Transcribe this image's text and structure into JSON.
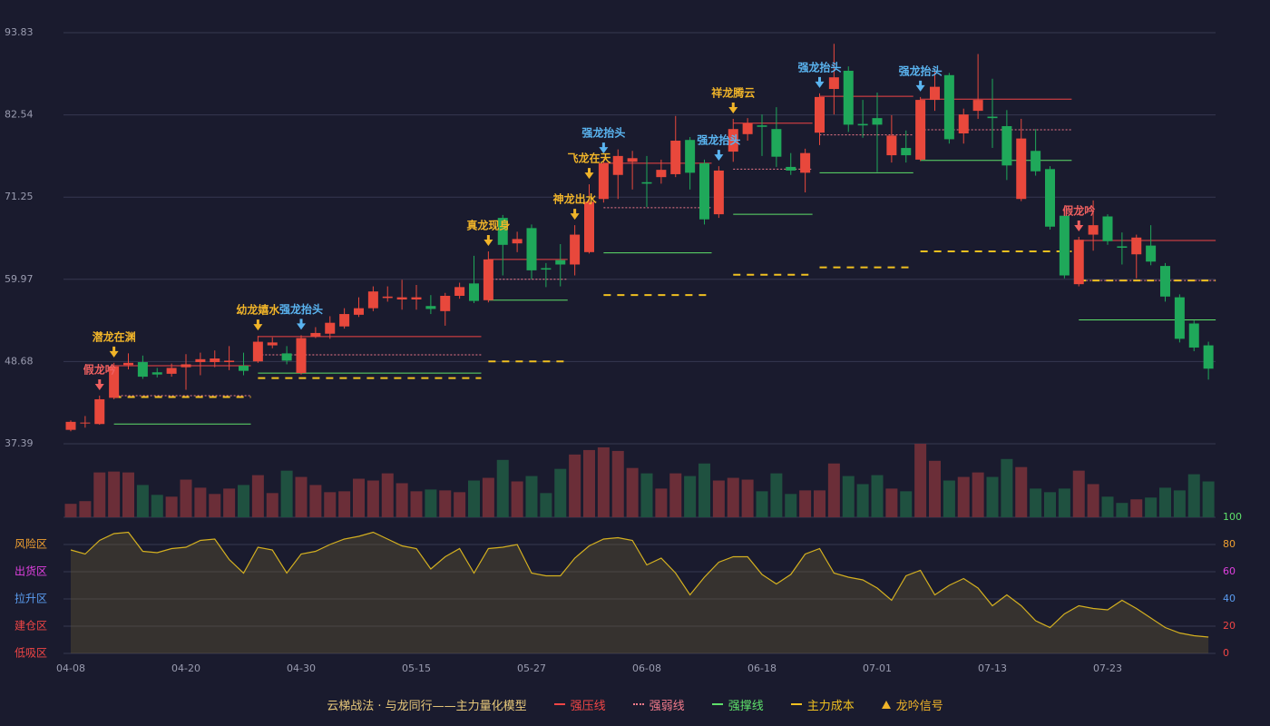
{
  "chart_data": {
    "type": "candlestick",
    "categories": [
      "04-08",
      null,
      null,
      null,
      null,
      null,
      null,
      null,
      "04-20",
      null,
      null,
      null,
      null,
      null,
      null,
      null,
      "04-30",
      null,
      null,
      null,
      null,
      null,
      null,
      null,
      "05-15",
      null,
      null,
      null,
      null,
      null,
      null,
      null,
      "05-27",
      null,
      null,
      null,
      null,
      null,
      null,
      null,
      "06-08",
      null,
      null,
      null,
      null,
      null,
      null,
      null,
      "06-18",
      null,
      null,
      null,
      null,
      null,
      null,
      null,
      "07-01",
      null,
      null,
      null,
      null,
      null,
      null,
      null,
      "07-13",
      null,
      null,
      null,
      null,
      null,
      null,
      null,
      "07-23",
      null,
      null,
      null,
      null,
      null,
      null,
      null
    ],
    "open": [
      39.3,
      40.2,
      40.1,
      43.7,
      48.2,
      48.6,
      47.2,
      47.0,
      47.9,
      48.6,
      48.6,
      48.6,
      48.1,
      48.7,
      50.9,
      49.8,
      47.1,
      52.1,
      52.5,
      53.5,
      55.1,
      56.0,
      57.4,
      57.2,
      57.2,
      56.3,
      55.6,
      57.7,
      59.4,
      57.1,
      68.4,
      64.9,
      67.0,
      61.5,
      62.6,
      62.0,
      63.7,
      71.0,
      74.3,
      76.1,
      73.3,
      74.0,
      74.4,
      79.1,
      75.9,
      68.9,
      77.5,
      79.9,
      81.1,
      80.6,
      75.4,
      74.6,
      80.1,
      86.1,
      88.6,
      81.3,
      82.1,
      77.0,
      78.0,
      76.4,
      84.6,
      88.0,
      80.0,
      83.1,
      82.3,
      81.0,
      71.0,
      77.6,
      75.1,
      68.7,
      59.3,
      66.1,
      68.6,
      64.5,
      63.4,
      64.6,
      61.8,
      57.5,
      53.9,
      50.9
    ],
    "close": [
      40.4,
      40.3,
      43.5,
      48.0,
      48.5,
      46.6,
      46.9,
      47.8,
      48.3,
      49.0,
      49.1,
      48.8,
      47.4,
      51.4,
      51.3,
      48.8,
      51.9,
      52.6,
      54.0,
      55.2,
      56.0,
      58.3,
      57.6,
      57.5,
      57.5,
      55.9,
      57.7,
      58.9,
      57.0,
      62.7,
      64.7,
      65.5,
      61.2,
      61.3,
      62.0,
      66.1,
      70.6,
      75.9,
      76.9,
      76.6,
      73.1,
      75.0,
      79.0,
      74.6,
      68.2,
      74.9,
      80.6,
      81.4,
      80.9,
      76.8,
      74.9,
      77.3,
      85.0,
      87.7,
      81.2,
      81.1,
      81.2,
      79.7,
      77.0,
      84.6,
      86.4,
      79.2,
      82.6,
      84.6,
      82.1,
      75.6,
      79.3,
      74.8,
      67.2,
      60.5,
      65.4,
      67.4,
      65.2,
      64.3,
      65.7,
      62.4,
      57.6,
      51.8,
      50.6,
      47.7
    ],
    "high": [
      40.6,
      41.2,
      44.0,
      48.5,
      49.8,
      49.5,
      47.8,
      48.4,
      49.7,
      49.9,
      50.2,
      50.8,
      49.9,
      52.2,
      52.0,
      50.8,
      52.3,
      53.4,
      54.9,
      56.0,
      57.5,
      59.0,
      59.0,
      59.9,
      59.2,
      57.8,
      58.1,
      59.5,
      63.2,
      63.8,
      68.8,
      66.5,
      67.5,
      62.2,
      64.8,
      67.4,
      73.0,
      76.5,
      77.8,
      77.6,
      76.9,
      76.4,
      82.4,
      79.5,
      76.4,
      75.5,
      82.0,
      82.1,
      82.6,
      83.6,
      77.3,
      77.9,
      85.5,
      92.3,
      89.2,
      84.6,
      85.6,
      82.5,
      80.4,
      85.0,
      88.9,
      88.3,
      83.4,
      90.9,
      87.5,
      83.2,
      82.0,
      80.6,
      75.5,
      68.9,
      65.8,
      70.8,
      68.9,
      66.4,
      66.1,
      67.4,
      62.2,
      57.9,
      54.3,
      51.4
    ],
    "low": [
      39.1,
      39.6,
      40.0,
      43.5,
      47.6,
      46.3,
      46.5,
      46.6,
      44.8,
      46.8,
      47.9,
      47.5,
      46.8,
      48.5,
      50.5,
      48.3,
      46.9,
      51.9,
      51.8,
      53.2,
      54.8,
      55.6,
      56.9,
      55.8,
      55.8,
      55.2,
      53.6,
      57.3,
      56.7,
      56.8,
      60.5,
      63.7,
      60.0,
      58.9,
      59.0,
      60.5,
      63.5,
      70.5,
      71.0,
      72.3,
      69.9,
      73.1,
      74.0,
      72.3,
      67.5,
      68.4,
      76.1,
      79.0,
      76.9,
      75.4,
      74.3,
      71.9,
      78.4,
      82.6,
      80.2,
      79.4,
      74.7,
      76.0,
      76.0,
      76.2,
      83.1,
      78.6,
      78.6,
      82.0,
      78.0,
      73.6,
      70.7,
      74.2,
      66.8,
      60.1,
      59.0,
      63.9,
      64.7,
      62.0,
      60.1,
      61.9,
      56.9,
      51.3,
      50.1,
      46.2
    ],
    "up_color": "#e8483c",
    "down_color": "#1fa85a",
    "ylim": [
      37.39,
      93.83
    ],
    "yticks": [
      37.39,
      48.68,
      59.97,
      71.25,
      82.54,
      93.83
    ],
    "grid": true,
    "volume": [
      15,
      18,
      50,
      51,
      50,
      36,
      25,
      23,
      42,
      33,
      26,
      32,
      36,
      47,
      27,
      52,
      45,
      36,
      28,
      29,
      43,
      41,
      49,
      38,
      29,
      31,
      30,
      28,
      41,
      44,
      64,
      40,
      46,
      27,
      54,
      70,
      75,
      78,
      74,
      55,
      49,
      32,
      49,
      46,
      60,
      41,
      44,
      42,
      29,
      49,
      26,
      30,
      30,
      60,
      46,
      37,
      47,
      32,
      29,
      82,
      63,
      41,
      45,
      50,
      45,
      65,
      56,
      32,
      28,
      32,
      52,
      37,
      23,
      16,
      20,
      22,
      33,
      30,
      48,
      40
    ],
    "volume_up_color": "#6b2e38",
    "volume_down_color": "#1f5140",
    "signals": [
      {
        "index": 2,
        "text": "假龙吟",
        "color": "#f06060"
      },
      {
        "index": 3,
        "text": "潜龙在渊",
        "color": "#f0b429"
      },
      {
        "index": 13,
        "text": "幼龙嬉水",
        "color": "#f0b429"
      },
      {
        "index": 16,
        "text": "强龙抬头",
        "color": "#5ab4f0"
      },
      {
        "index": 29,
        "text": "真龙现身",
        "color": "#f0b429"
      },
      {
        "index": 35,
        "text": "神龙出水",
        "color": "#f0b429"
      },
      {
        "index": 36,
        "text": "飞龙在天",
        "color": "#f0b429"
      },
      {
        "index": 37,
        "text": "强龙抬头",
        "color": "#5ab4f0"
      },
      {
        "index": 45,
        "text": "强龙抬头",
        "color": "#5ab4f0"
      },
      {
        "index": 46,
        "text": "祥龙腾云",
        "color": "#f0b429"
      },
      {
        "index": 52,
        "text": "强龙抬头",
        "color": "#5ab4f0"
      },
      {
        "index": 59,
        "text": "强龙抬头",
        "color": "#5ab4f0"
      },
      {
        "index": 70,
        "text": "假龙吟",
        "color": "#f06060"
      }
    ],
    "lines": [
      {
        "name": "强压线",
        "color": "#f04545",
        "style": "solid",
        "segments": [
          {
            "start": 3,
            "end": 12,
            "value": 48.1
          },
          {
            "start": 13,
            "end": 28,
            "value": 52.1
          },
          {
            "start": 29,
            "end": 34,
            "value": 62.7
          },
          {
            "start": 37,
            "end": 44,
            "value": 75.9
          },
          {
            "start": 46,
            "end": 51,
            "value": 81.4
          },
          {
            "start": 52,
            "end": 58,
            "value": 85.1
          },
          {
            "start": 59,
            "end": 69,
            "value": 84.7
          },
          {
            "start": 70,
            "end": 79,
            "value": 65.3
          }
        ]
      },
      {
        "name": "强弱线",
        "color": "#f07a8a",
        "style": "dotted",
        "segments": [
          {
            "start": 3,
            "end": 12,
            "value": 44.0
          },
          {
            "start": 13,
            "end": 28,
            "value": 49.6
          },
          {
            "start": 29,
            "end": 34,
            "value": 59.97
          },
          {
            "start": 37,
            "end": 44,
            "value": 69.8
          },
          {
            "start": 46,
            "end": 51,
            "value": 75.1
          },
          {
            "start": 52,
            "end": 58,
            "value": 79.8
          },
          {
            "start": 59,
            "end": 69,
            "value": 80.5
          },
          {
            "start": 70,
            "end": 79,
            "value": 59.8
          }
        ]
      },
      {
        "name": "强撑线",
        "color": "#5ee06a",
        "style": "solid",
        "segments": [
          {
            "start": 3,
            "end": 12,
            "value": 40.1
          },
          {
            "start": 13,
            "end": 28,
            "value": 47.1
          },
          {
            "start": 29,
            "end": 34,
            "value": 57.1
          },
          {
            "start": 37,
            "end": 44,
            "value": 63.6
          },
          {
            "start": 46,
            "end": 51,
            "value": 68.9
          },
          {
            "start": 52,
            "end": 58,
            "value": 74.6
          },
          {
            "start": 59,
            "end": 69,
            "value": 76.3
          },
          {
            "start": 70,
            "end": 79,
            "value": 54.4
          }
        ]
      },
      {
        "name": "主力成本",
        "color": "#f0c020",
        "style": "dashed",
        "segments": [
          {
            "start": 3,
            "end": 12,
            "value": 43.8
          },
          {
            "start": 13,
            "end": 28,
            "value": 46.4
          },
          {
            "start": 29,
            "end": 34,
            "value": 48.7
          },
          {
            "start": 37,
            "end": 44,
            "value": 57.8
          },
          {
            "start": 46,
            "end": 51,
            "value": 60.6
          },
          {
            "start": 52,
            "end": 58,
            "value": 61.6
          },
          {
            "start": 59,
            "end": 69,
            "value": 63.8
          },
          {
            "start": 70,
            "end": 79,
            "value": 59.8
          }
        ]
      }
    ],
    "indicator": {
      "values": [
        76,
        73,
        83,
        88,
        89,
        75,
        74,
        77,
        78,
        83,
        84,
        69,
        59,
        78,
        76,
        59,
        73,
        75,
        80,
        84,
        86,
        89,
        84,
        79,
        77,
        62,
        71,
        77,
        59,
        77,
        78,
        80,
        59,
        57,
        57,
        70,
        79,
        84,
        85,
        83,
        65,
        70,
        59,
        43,
        56,
        67,
        71,
        71,
        58,
        51,
        58,
        73,
        77,
        59,
        56,
        54,
        48,
        39,
        57,
        61,
        43,
        50,
        55,
        48,
        35,
        43,
        35,
        24,
        19,
        29,
        35,
        33,
        32,
        39,
        33,
        26,
        19,
        15,
        13,
        12
      ],
      "color": "#d4b020",
      "ylim": [
        0,
        100
      ],
      "yticks": [
        0,
        20,
        40,
        60,
        80,
        100
      ],
      "tick_colors": [
        "#f04545",
        "#f04545",
        "#5a9cf0",
        "#e040e0",
        "#f0a030",
        "#5ee06a"
      ],
      "zones": [
        {
          "label": "风险区",
          "value": 80,
          "color": "#f0a030"
        },
        {
          "label": "出货区",
          "value": 60,
          "color": "#e040e0"
        },
        {
          "label": "拉升区",
          "value": 40,
          "color": "#5a9cf0"
        },
        {
          "label": "建仓区",
          "value": 20,
          "color": "#f04545"
        },
        {
          "label": "低吸区",
          "value": 0,
          "color": "#f04545"
        }
      ]
    },
    "legend": {
      "title": "云梯战法 · 与龙同行——主力量化模型",
      "title_color": "#e8c87a",
      "signal": {
        "name": "龙吟信号",
        "color": "#f0b429"
      }
    }
  }
}
